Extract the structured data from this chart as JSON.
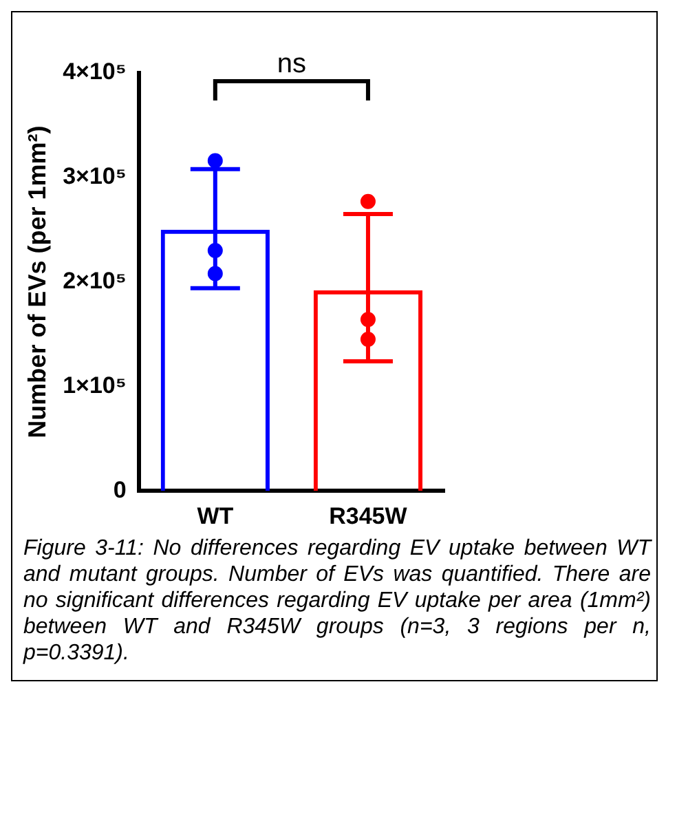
{
  "chart_data": {
    "type": "bar",
    "categories": [
      "WT",
      "R345W"
    ],
    "ylabel": "Number of EVs (per 1mm²)",
    "ylim": [
      0,
      400000
    ],
    "yticks": [
      {
        "value": 0,
        "label": "0"
      },
      {
        "value": 100000,
        "label": "1×10⁵"
      },
      {
        "value": 200000,
        "label": "2×10⁵"
      },
      {
        "value": 300000,
        "label": "3×10⁵"
      },
      {
        "value": 400000,
        "label": "4×10⁵"
      }
    ],
    "grid": false,
    "legend": false,
    "marker": "circle",
    "series": [
      {
        "values": [
          250000,
          192000
        ],
        "colors": [
          "#0000ff",
          "#ff0000"
        ],
        "errors": [
          [
            194000,
            308000
          ],
          [
            124000,
            265000
          ]
        ]
      },
      {
        "type": "scatter",
        "x": [
          "WT",
          "WT",
          "WT",
          "R345W",
          "R345W",
          "R345W"
        ],
        "values": [
          316000,
          230000,
          208000,
          277000,
          164000,
          145000
        ],
        "colors": [
          "#0000ff",
          "#0000ff",
          "#0000ff",
          "#ff0000",
          "#ff0000",
          "#ff0000"
        ]
      }
    ],
    "annotations": [
      "ns",
      "Figure 3-11: No differences regarding EV uptake between WT and mutant groups. Number of EVs was quantified. There are no significant differences regarding EV uptake per area (1mm²) between WT and R345W groups (n=3, 3 regions per n, p=0.3391)."
    ]
  }
}
